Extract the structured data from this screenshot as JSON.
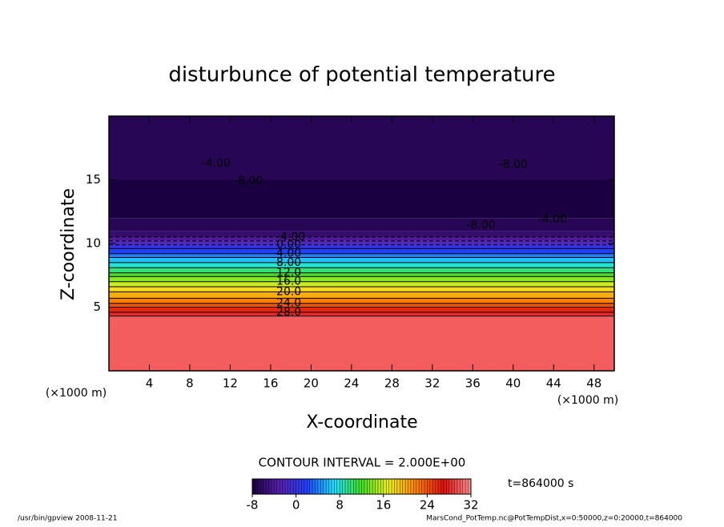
{
  "chart_data": {
    "type": "contour",
    "title": "disturbunce of potential temperature",
    "xlabel": "X-coordinate",
    "ylabel": "Z-coordinate",
    "x_unit_label": "(×1000 m)",
    "y_unit_label": "(×1000 m)",
    "xlim": [
      0,
      50
    ],
    "ylim": [
      0,
      20
    ],
    "xticks": [
      4,
      8,
      12,
      16,
      20,
      24,
      28,
      32,
      36,
      40,
      44,
      48
    ],
    "yticks": [
      5,
      10,
      15
    ],
    "z": [
      0,
      4.3,
      4.6,
      5.0,
      5.3,
      5.7,
      6.2,
      6.6,
      7.0,
      7.4,
      7.7,
      8.1,
      8.5,
      8.9,
      9.2,
      9.6,
      9.9,
      10.2,
      10.5,
      11,
      12,
      15,
      20
    ],
    "values": [
      30,
      28,
      26,
      24,
      22,
      20,
      18,
      16,
      14,
      12,
      10,
      8,
      6,
      4,
      2,
      0,
      -2,
      -4,
      -6,
      -7,
      -8,
      -7
    ],
    "contour_labels": [
      {
        "value": -4,
        "label": "-4.00",
        "x": 10.6,
        "y": 16.3
      },
      {
        "value": -8,
        "label": "-8.00",
        "x": 13.8,
        "y": 14.9
      },
      {
        "value": -8,
        "label": "-8.00",
        "x": 40.0,
        "y": 16.2
      },
      {
        "value": -8,
        "label": "-8.00",
        "x": 36.8,
        "y": 11.4
      },
      {
        "value": -4,
        "label": "-4.00",
        "x": 43.9,
        "y": 11.9
      },
      {
        "value": -4,
        "label": "-4.00",
        "x": 18.0,
        "y": 10.5
      },
      {
        "value": 0,
        "label": "0.00",
        "x": 17.8,
        "y": 9.9
      },
      {
        "value": 4,
        "label": "4.00",
        "x": 17.8,
        "y": 9.2
      },
      {
        "value": 8,
        "label": "8.00",
        "x": 17.8,
        "y": 8.5
      },
      {
        "value": 12,
        "label": "12.0",
        "x": 17.8,
        "y": 7.7
      },
      {
        "value": 16,
        "label": "16.0",
        "x": 17.8,
        "y": 7.0
      },
      {
        "value": 20,
        "label": "20.0",
        "x": 17.8,
        "y": 6.2
      },
      {
        "value": 24,
        "label": "24.0",
        "x": 17.8,
        "y": 5.3
      },
      {
        "value": 28,
        "label": "28.0",
        "x": 17.8,
        "y": 4.6
      }
    ],
    "contour_interval": "CONTOUR INTERVAL = 2.000E+00",
    "time_label": "t=864000 s",
    "clim": [
      -8,
      32
    ],
    "cticks": [
      -8,
      0,
      8,
      16,
      24,
      32
    ],
    "colormap": [
      "#1a0040",
      "#5a20b0",
      "#2040ff",
      "#20e0ff",
      "#40e020",
      "#f0f020",
      "#ff8000",
      "#e01010",
      "#ff9090"
    ],
    "footer_left": "/usr/bin/gpview   2008-11-21",
    "footer_right": "MarsCond_PotTemp.nc@PotTempDist,x=0:50000,z=0:20000,t=864000"
  }
}
